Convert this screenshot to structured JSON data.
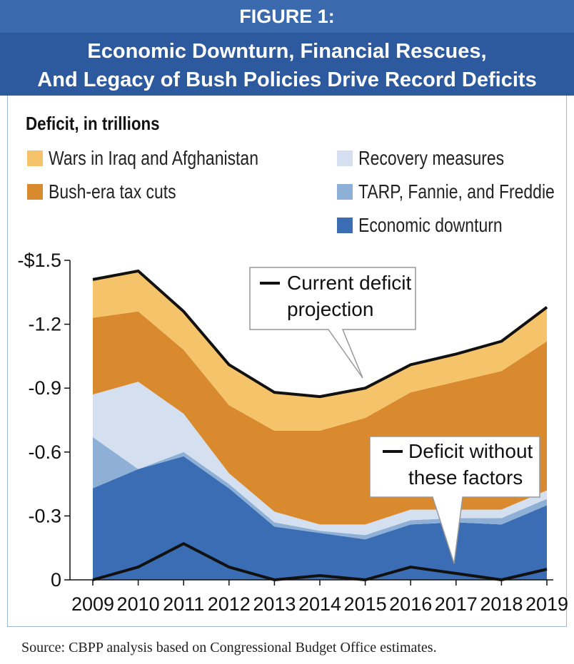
{
  "header": {
    "figure_label": "FIGURE 1:",
    "title_line1": "Economic Downturn, Financial Rescues,",
    "title_line2": "And Legacy of Bush Policies Drive Record Deficits"
  },
  "legend": [
    {
      "key": "wars",
      "label": "Wars in Iraq and Afghanistan",
      "color": "#f5c46a"
    },
    {
      "key": "recovery",
      "label": "Recovery measures",
      "color": "#d4e0ef"
    },
    {
      "key": "bush",
      "label": "Bush-era tax cuts",
      "color": "#d98a2e"
    },
    {
      "key": "tarp",
      "label": "TARP, Fannie, and Freddie",
      "color": "#8fb0d6"
    },
    {
      "key": "downturn",
      "label": "Economic downturn",
      "color": "#3b6db4"
    }
  ],
  "callouts": {
    "current": {
      "line1": "Current deficit",
      "line2": "projection"
    },
    "without": {
      "line1": "Deficit without",
      "line2": "these factors"
    }
  },
  "source": "Source: CBPP analysis based on Congressional Budget Office estimates.",
  "chart_data": {
    "type": "area",
    "title": "Economic Downturn, Financial Rescues, And Legacy of Bush Policies Drive Record Deficits",
    "ylabel": "Deficit, in trillions",
    "xlabel": "",
    "x": [
      2009,
      2010,
      2011,
      2012,
      2013,
      2014,
      2015,
      2016,
      2017,
      2018,
      2019
    ],
    "x_tick_labels": [
      "2009",
      "2010",
      "2011",
      "2012",
      "2013",
      "2014",
      "2015",
      "2016",
      "2017",
      "2018",
      "2019"
    ],
    "ylim": [
      0,
      1.5
    ],
    "y_ticks": [
      0,
      0.3,
      0.6,
      0.9,
      1.2,
      1.5
    ],
    "y_tick_labels": [
      "0",
      "-0.3",
      "-0.6",
      "-0.9",
      "-1.2",
      "-$1.5"
    ],
    "stacked": true,
    "series": [
      {
        "name": "Economic downturn",
        "key": "downturn",
        "values": [
          0.43,
          0.52,
          0.58,
          0.43,
          0.25,
          0.22,
          0.19,
          0.26,
          0.27,
          0.26,
          0.35
        ]
      },
      {
        "name": "TARP, Fannie, and Freddie",
        "key": "tarp",
        "values": [
          0.24,
          0.0,
          0.02,
          0.02,
          0.02,
          0.01,
          0.02,
          0.02,
          0.02,
          0.03,
          0.03
        ]
      },
      {
        "name": "Recovery measures",
        "key": "recovery",
        "values": [
          0.2,
          0.41,
          0.18,
          0.05,
          0.05,
          0.03,
          0.05,
          0.05,
          0.04,
          0.04,
          0.04
        ]
      },
      {
        "name": "Bush-era tax cuts",
        "key": "bush",
        "values": [
          0.36,
          0.33,
          0.3,
          0.32,
          0.38,
          0.44,
          0.5,
          0.55,
          0.6,
          0.65,
          0.7
        ]
      },
      {
        "name": "Wars in Iraq and Afghanistan",
        "key": "wars",
        "values": [
          0.18,
          0.19,
          0.18,
          0.19,
          0.18,
          0.16,
          0.14,
          0.13,
          0.13,
          0.14,
          0.16
        ]
      }
    ],
    "lines": [
      {
        "name": "Current deficit projection",
        "values": [
          1.41,
          1.45,
          1.26,
          1.01,
          0.88,
          0.86,
          0.9,
          1.01,
          1.06,
          1.12,
          1.28
        ]
      },
      {
        "name": "Deficit without these factors",
        "values": [
          0.0,
          0.06,
          0.17,
          0.06,
          0.0,
          0.02,
          0.0,
          0.06,
          0.03,
          0.0,
          0.05
        ]
      }
    ],
    "grid": false,
    "legend_position": "top"
  }
}
